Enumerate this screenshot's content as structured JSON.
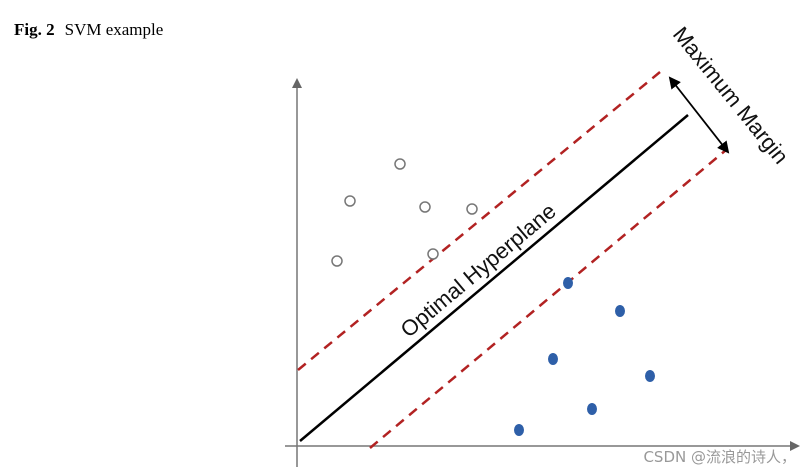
{
  "caption": {
    "label": "Fig. 2",
    "text": "SVM example"
  },
  "figure": {
    "margin_label": "Maximum Margin",
    "hyperplane_label": "Optimal Hyperplane"
  },
  "watermark": "CSDN @流浪的诗人，"
}
